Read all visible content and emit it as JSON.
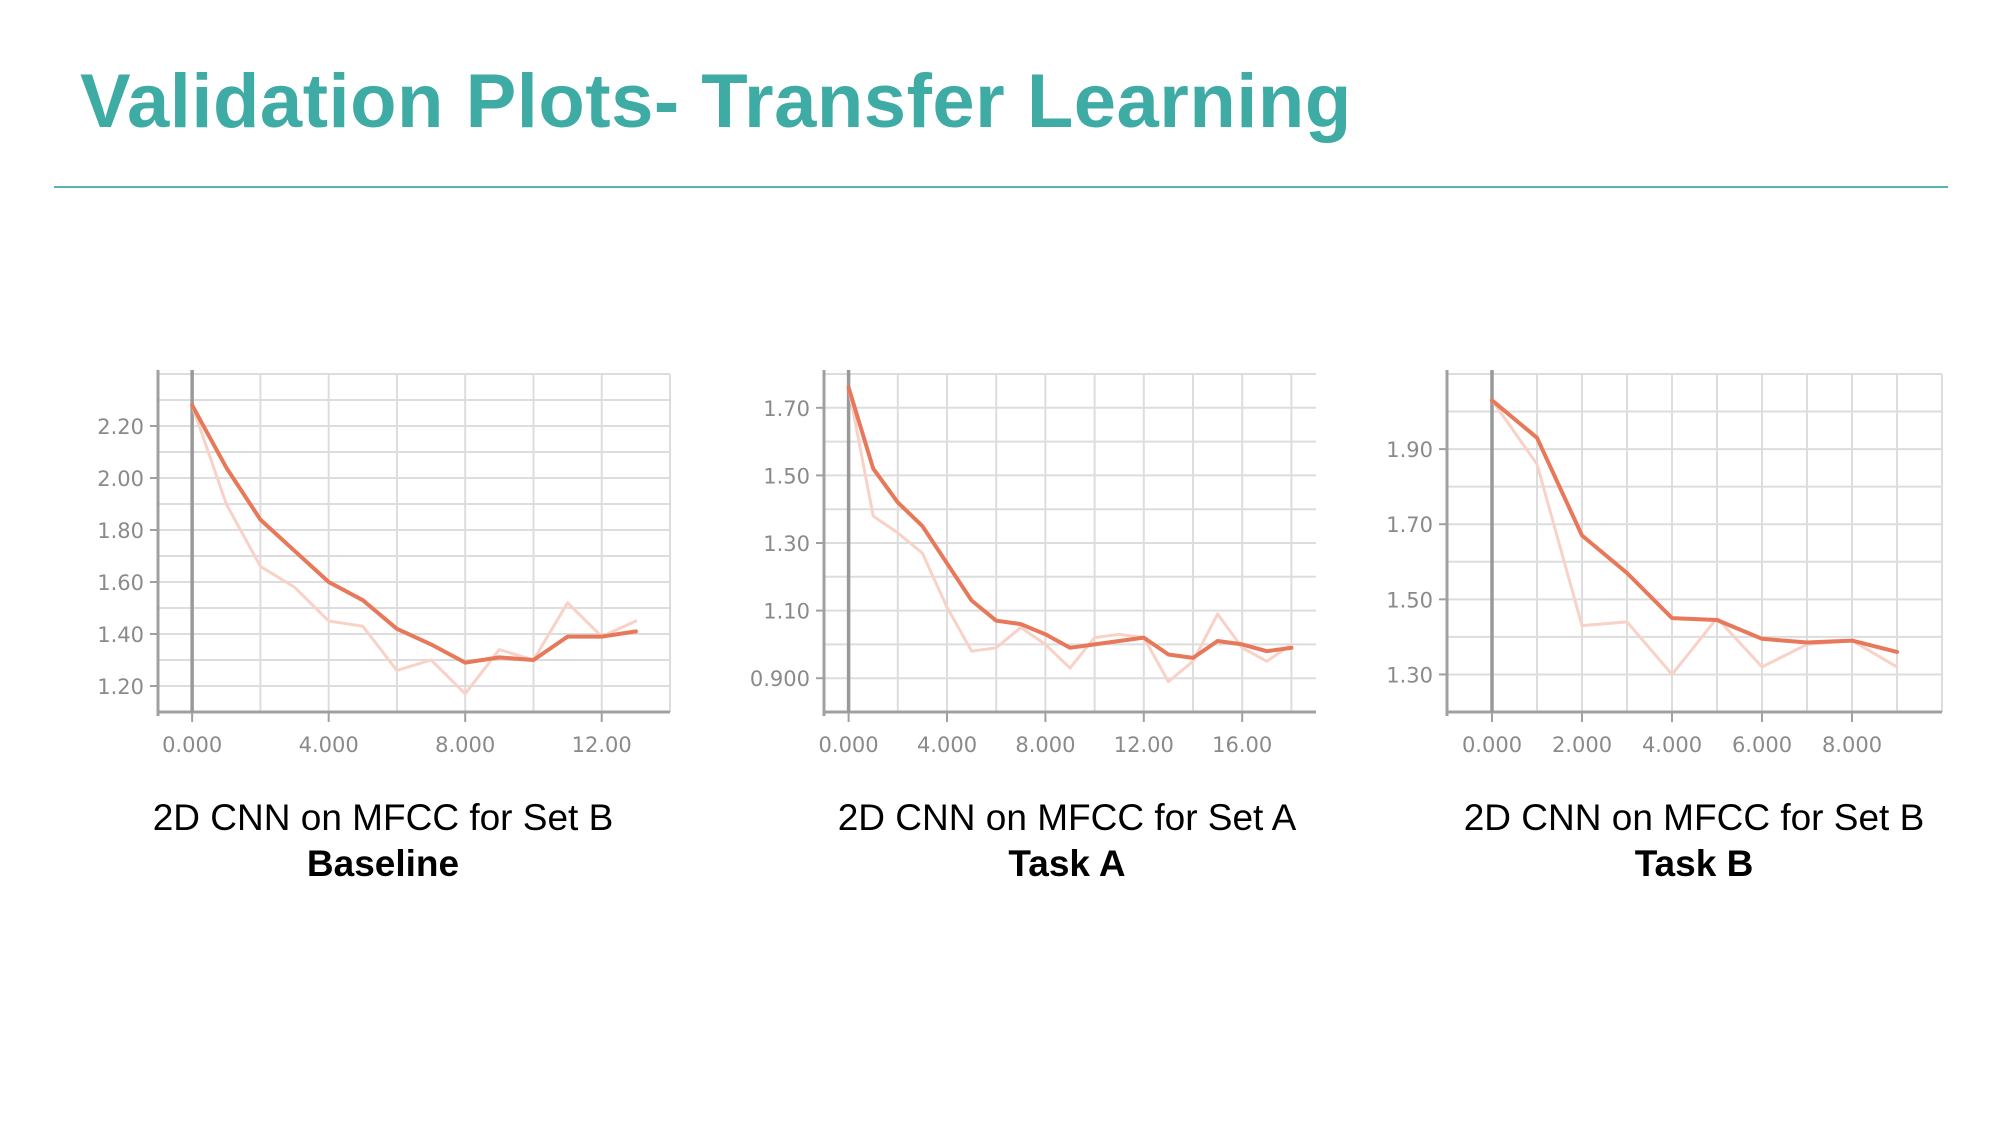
{
  "title": "Validation Plots- Transfer Learning",
  "colors": {
    "title": "#3eaba5",
    "rule": "#5bb3b0",
    "smoothed_line": "#e8785a",
    "raw_line": "#f8d2c7",
    "grid": "#dddddd",
    "axis": "#a0a0a0",
    "tick_label": "#8a8a8a"
  },
  "chart_data": [
    {
      "type": "line",
      "title": "2D CNN on MFCC for Set B",
      "subtitle": "Baseline",
      "xlim": [
        -1,
        14
      ],
      "ylim": [
        1.1,
        2.4
      ],
      "xticks": [
        0,
        4,
        8,
        12
      ],
      "xtick_labels": [
        "0.000",
        "4.000",
        "8.000",
        "12.00"
      ],
      "yticks": [
        1.2,
        1.4,
        1.6,
        1.8,
        2.0,
        2.2
      ],
      "ytick_labels": [
        "1.20",
        "1.40",
        "1.60",
        "1.80",
        "2.00",
        "2.20"
      ],
      "grid": true,
      "series": [
        {
          "role": "smoothed",
          "x": [
            0,
            1,
            2,
            3,
            4,
            5,
            6,
            7,
            8,
            9,
            10,
            11,
            12,
            13
          ],
          "y": [
            2.28,
            2.04,
            1.84,
            1.72,
            1.6,
            1.53,
            1.42,
            1.36,
            1.29,
            1.31,
            1.3,
            1.39,
            1.39,
            1.41
          ]
        },
        {
          "role": "raw",
          "x": [
            0,
            1,
            2,
            3,
            4,
            5,
            6,
            7,
            8,
            9,
            10,
            11,
            12,
            13
          ],
          "y": [
            2.28,
            1.9,
            1.66,
            1.58,
            1.45,
            1.43,
            1.26,
            1.3,
            1.17,
            1.34,
            1.3,
            1.52,
            1.39,
            1.45
          ]
        }
      ]
    },
    {
      "type": "line",
      "title": "2D CNN on MFCC for Set A",
      "subtitle": "Task A",
      "xlim": [
        -1,
        19
      ],
      "ylim": [
        0.8,
        1.8
      ],
      "xticks": [
        0,
        4,
        8,
        12,
        16
      ],
      "xtick_labels": [
        "0.000",
        "4.000",
        "8.000",
        "12.00",
        "16.00"
      ],
      "yticks": [
        0.9,
        1.1,
        1.3,
        1.5,
        1.7
      ],
      "ytick_labels": [
        "0.900",
        "1.10",
        "1.30",
        "1.50",
        "1.70"
      ],
      "grid": true,
      "series": [
        {
          "role": "smoothed",
          "x": [
            0,
            1,
            2,
            3,
            4,
            5,
            6,
            7,
            8,
            9,
            10,
            11,
            12,
            13,
            14,
            15,
            16,
            17,
            18
          ],
          "y": [
            1.76,
            1.52,
            1.42,
            1.35,
            1.24,
            1.13,
            1.07,
            1.06,
            1.03,
            0.99,
            1.0,
            1.01,
            1.02,
            0.97,
            0.96,
            1.01,
            1.0,
            0.98,
            0.99
          ]
        },
        {
          "role": "raw",
          "x": [
            0,
            1,
            2,
            3,
            4,
            5,
            6,
            7,
            8,
            9,
            10,
            11,
            12,
            13,
            14,
            15,
            16,
            17,
            18
          ],
          "y": [
            1.76,
            1.38,
            1.33,
            1.27,
            1.11,
            0.98,
            0.99,
            1.05,
            1.0,
            0.93,
            1.02,
            1.03,
            1.02,
            0.89,
            0.95,
            1.09,
            0.99,
            0.95,
            1.0
          ]
        }
      ]
    },
    {
      "type": "line",
      "title": "2D CNN on MFCC for Set B",
      "subtitle": "Task B",
      "xlim": [
        -1,
        10
      ],
      "ylim": [
        1.2,
        2.1
      ],
      "xticks": [
        0,
        2,
        4,
        6,
        8
      ],
      "xtick_labels": [
        "0.000",
        "2.000",
        "4.000",
        "6.000",
        "8.000"
      ],
      "yticks": [
        1.3,
        1.5,
        1.7,
        1.9
      ],
      "ytick_labels": [
        "1.30",
        "1.50",
        "1.70",
        "1.90"
      ],
      "grid": true,
      "series": [
        {
          "role": "smoothed",
          "x": [
            0,
            1,
            2,
            3,
            4,
            5,
            6,
            7,
            8,
            9
          ],
          "y": [
            2.03,
            1.93,
            1.67,
            1.57,
            1.45,
            1.445,
            1.395,
            1.385,
            1.39,
            1.36
          ]
        },
        {
          "role": "raw",
          "x": [
            0,
            1,
            2,
            3,
            4,
            5,
            6,
            7,
            8,
            9
          ],
          "y": [
            2.03,
            1.86,
            1.43,
            1.44,
            1.3,
            1.45,
            1.32,
            1.38,
            1.39,
            1.32
          ]
        }
      ]
    }
  ]
}
